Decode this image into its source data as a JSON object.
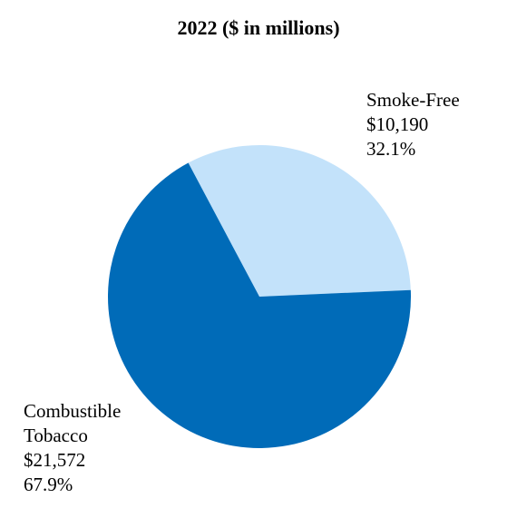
{
  "chart_data": {
    "type": "pie",
    "title": "2022 ($ in millions)",
    "slices": [
      {
        "label": "Smoke-Free",
        "value_text": "$10,190",
        "percent_text": "32.1%",
        "value": 10190,
        "percent": 32.1,
        "color": "#c3e2fa"
      },
      {
        "label_lines": [
          "Combustible",
          "Tobacco"
        ],
        "value_text": "$21,572",
        "percent_text": "67.9%",
        "value": 21572,
        "percent": 67.9,
        "color": "#006bb8"
      }
    ],
    "legend": "none"
  }
}
